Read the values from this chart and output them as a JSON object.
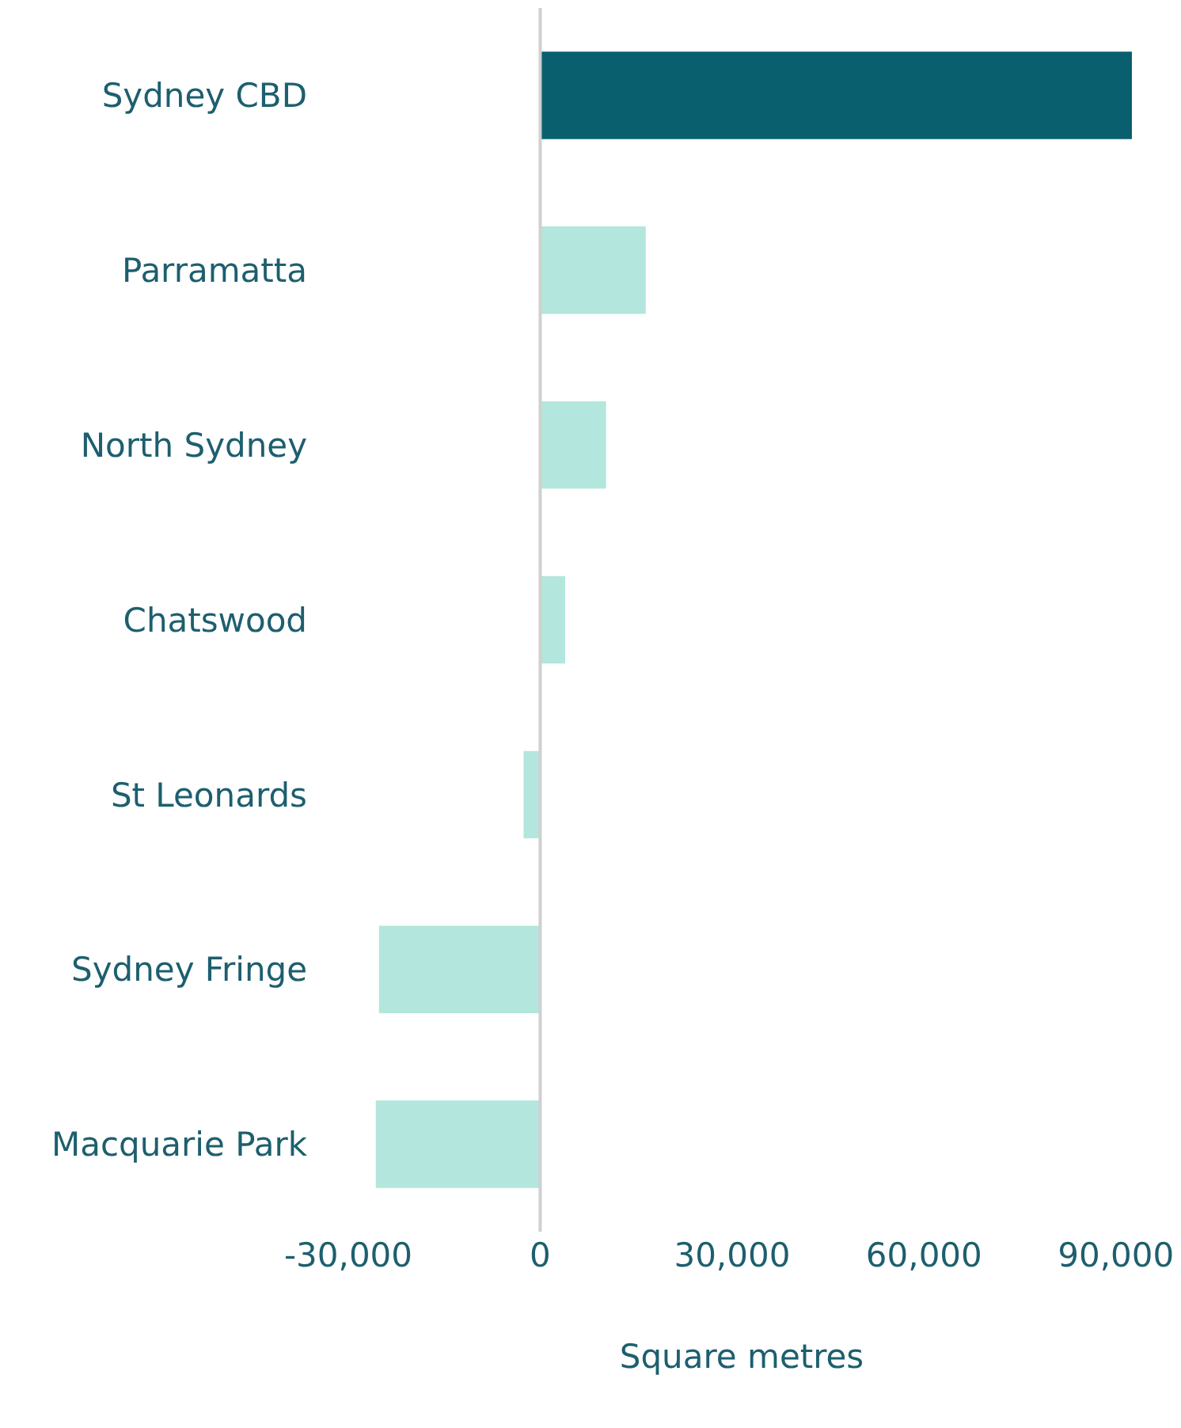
{
  "chart_data": {
    "type": "bar",
    "orientation": "horizontal",
    "categories": [
      "Sydney CBD",
      "Parramatta",
      "North Sydney",
      "Chatswood",
      "St Leonards",
      "Sydney Fringe",
      "Macquarie Park"
    ],
    "values": [
      92500,
      16500,
      10300,
      3900,
      -2600,
      -25200,
      -25700
    ],
    "colors": [
      "#0a5f6e",
      "#b3e6dc",
      "#b3e6dc",
      "#b3e6dc",
      "#b3e6dc",
      "#b3e6dc",
      "#b3e6dc"
    ],
    "xlim": [
      -30000,
      93000
    ],
    "xticks": [
      {
        "value": -30000,
        "label": "-30,000"
      },
      0,
      {
        "value": 30000,
        "label": "30,000"
      },
      {
        "value": 60000,
        "label": "60,000"
      },
      {
        "value": 90000,
        "label": "90,000"
      }
    ],
    "ref_lines": [
      {
        "axis": "x",
        "value": 0,
        "color": "#d0d0d0"
      }
    ],
    "xlabel": "Square metres",
    "grid": false
  }
}
